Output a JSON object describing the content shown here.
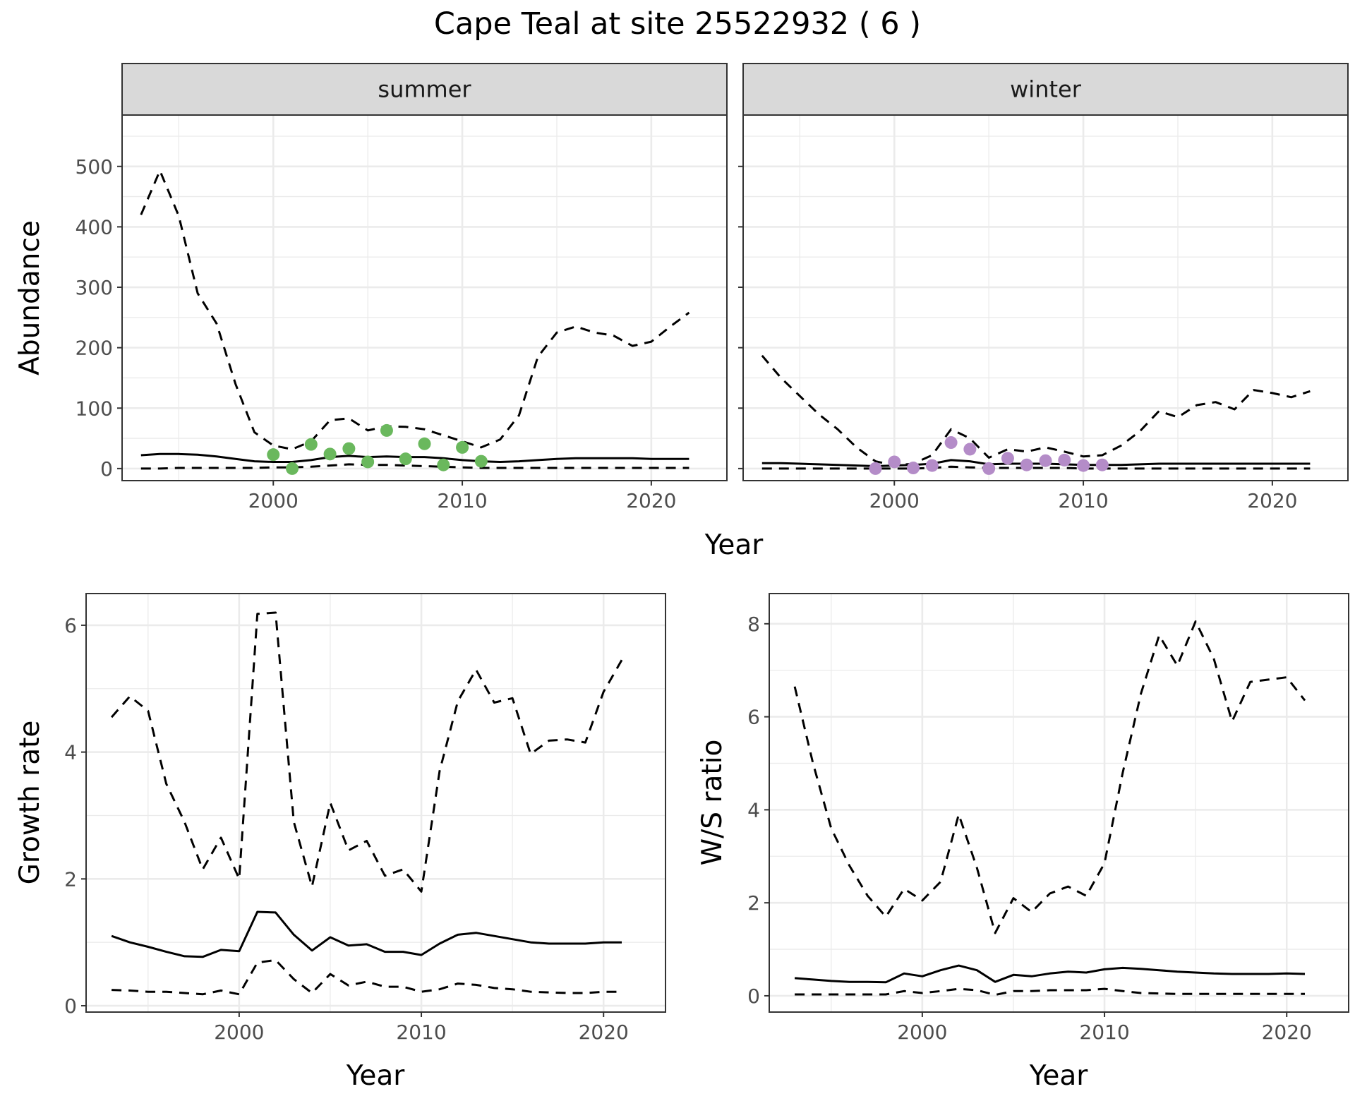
{
  "title": "Cape Teal at site 25522932 ( 6 )",
  "chart_data": [
    {
      "type": "line",
      "panel": "summer",
      "strip_label": "summer",
      "xlabel": "",
      "ylabel": "Abundance",
      "xlim": [
        1992,
        2024
      ],
      "ylim": [
        -20,
        585
      ],
      "x_ticks": [
        2000,
        2010,
        2020
      ],
      "y_ticks": [
        0,
        100,
        200,
        300,
        400,
        500
      ],
      "grid": true,
      "series": [
        {
          "style": "dashed",
          "x": [
            1993,
            1994,
            1995,
            1996,
            1997,
            1998,
            1999,
            2000,
            2001,
            2002,
            2003,
            2004,
            2005,
            2006,
            2007,
            2008,
            2009,
            2010,
            2011,
            2012,
            2013,
            2014,
            2015,
            2016,
            2017,
            2018,
            2019,
            2020,
            2021,
            2022
          ],
          "values": [
            420,
            493,
            418,
            290,
            240,
            140,
            60,
            38,
            32,
            45,
            80,
            83,
            63,
            70,
            69,
            65,
            55,
            45,
            35,
            48,
            88,
            185,
            225,
            235,
            225,
            220,
            203,
            210,
            235,
            258
          ]
        },
        {
          "style": "solid",
          "x": [
            1993,
            1994,
            1995,
            1996,
            1997,
            1998,
            1999,
            2000,
            2001,
            2002,
            2003,
            2004,
            2005,
            2006,
            2007,
            2008,
            2009,
            2010,
            2011,
            2012,
            2013,
            2014,
            2015,
            2016,
            2017,
            2018,
            2019,
            2020,
            2021,
            2022
          ],
          "values": [
            22,
            24,
            24,
            23,
            20,
            16,
            12,
            11,
            11,
            14,
            19,
            21,
            19,
            20,
            19,
            19,
            17,
            14,
            12,
            11,
            12,
            14,
            16,
            17,
            17,
            17,
            17,
            16,
            16,
            16
          ]
        },
        {
          "style": "dashed",
          "x": [
            1993,
            1994,
            1995,
            1996,
            1997,
            1998,
            1999,
            2000,
            2001,
            2002,
            2003,
            2004,
            2005,
            2006,
            2007,
            2008,
            2009,
            2010,
            2011,
            2012,
            2013,
            2014,
            2015,
            2016,
            2017,
            2018,
            2019,
            2020,
            2021,
            2022
          ],
          "values": [
            0,
            0,
            1,
            1,
            1,
            1,
            1,
            2,
            2,
            3,
            5,
            7,
            6,
            6,
            5,
            4,
            3,
            2,
            1,
            1,
            1,
            1,
            1,
            1,
            1,
            1,
            1,
            1,
            1,
            1
          ]
        }
      ],
      "points": {
        "color": "#6ab85d",
        "x": [
          2000,
          2001,
          2002,
          2003,
          2004,
          2005,
          2006,
          2007,
          2008,
          2009,
          2010,
          2011
        ],
        "values": [
          23,
          0,
          40,
          24,
          33,
          11,
          63,
          16,
          41,
          6,
          35,
          12
        ]
      }
    },
    {
      "type": "line",
      "panel": "winter",
      "strip_label": "winter",
      "xlabel": "",
      "ylabel": "",
      "xlim": [
        1992,
        2024
      ],
      "ylim": [
        -20,
        585
      ],
      "x_ticks": [
        2000,
        2010,
        2020
      ],
      "y_ticks": [
        0,
        100,
        200,
        300,
        400,
        500
      ],
      "grid": true,
      "series": [
        {
          "style": "dashed",
          "x": [
            1993,
            1994,
            1995,
            1996,
            1997,
            1998,
            1999,
            2000,
            2001,
            2002,
            2003,
            2004,
            2005,
            2006,
            2007,
            2008,
            2009,
            2010,
            2011,
            2012,
            2013,
            2014,
            2015,
            2016,
            2017,
            2018,
            2019,
            2020,
            2021,
            2022
          ],
          "values": [
            187,
            150,
            120,
            90,
            65,
            35,
            12,
            5,
            8,
            22,
            65,
            50,
            18,
            32,
            28,
            35,
            28,
            20,
            22,
            38,
            62,
            95,
            85,
            105,
            110,
            98,
            130,
            125,
            118,
            128
          ]
        },
        {
          "style": "solid",
          "x": [
            1993,
            1994,
            1995,
            1996,
            1997,
            1998,
            1999,
            2000,
            2001,
            2002,
            2003,
            2004,
            2005,
            2006,
            2007,
            2008,
            2009,
            2010,
            2011,
            2012,
            2013,
            2014,
            2015,
            2016,
            2017,
            2018,
            2019,
            2020,
            2021,
            2022
          ],
          "values": [
            9,
            9,
            8,
            7,
            6,
            5,
            4,
            5,
            6,
            8,
            14,
            12,
            7,
            8,
            8,
            8,
            7,
            6,
            6,
            6,
            7,
            8,
            8,
            8,
            8,
            8,
            8,
            8,
            8,
            8
          ]
        },
        {
          "style": "dashed",
          "x": [
            1993,
            1994,
            1995,
            1996,
            1997,
            1998,
            1999,
            2000,
            2001,
            2002,
            2003,
            2004,
            2005,
            2006,
            2007,
            2008,
            2009,
            2010,
            2011,
            2012,
            2013,
            2014,
            2015,
            2016,
            2017,
            2018,
            2019,
            2020,
            2021,
            2022
          ],
          "values": [
            0,
            0,
            0,
            0,
            0,
            0,
            0,
            0,
            0,
            1,
            3,
            2,
            1,
            1,
            1,
            1,
            1,
            0,
            0,
            0,
            0,
            0,
            0,
            0,
            0,
            0,
            0,
            0,
            0,
            0
          ]
        }
      ],
      "points": {
        "color": "#b48cc8",
        "x": [
          1999,
          2000,
          2001,
          2002,
          2003,
          2004,
          2005,
          2006,
          2007,
          2008,
          2009,
          2010,
          2011
        ],
        "values": [
          0,
          11,
          1,
          5,
          43,
          32,
          0,
          17,
          6,
          13,
          14,
          5,
          6
        ]
      }
    },
    {
      "type": "line",
      "panel": "growth",
      "xlabel": "Year",
      "ylabel": "Growth rate",
      "xlim": [
        1991.6,
        2023.4
      ],
      "ylim": [
        -0.1,
        6.5
      ],
      "x_ticks": [
        2000,
        2010,
        2020
      ],
      "y_ticks": [
        0,
        2,
        4,
        6
      ],
      "grid": true,
      "series": [
        {
          "style": "dashed",
          "x": [
            1993,
            1994,
            1995,
            1996,
            1997,
            1998,
            1999,
            2000,
            2001,
            2002,
            2003,
            2004,
            2005,
            2006,
            2007,
            2008,
            2009,
            2010,
            2011,
            2012,
            2013,
            2014,
            2015,
            2016,
            2017,
            2018,
            2019,
            2020,
            2021
          ],
          "values": [
            4.55,
            4.88,
            4.65,
            3.5,
            2.9,
            2.15,
            2.65,
            2.0,
            6.18,
            6.2,
            2.9,
            1.88,
            3.2,
            2.45,
            2.6,
            2.05,
            2.15,
            1.8,
            3.7,
            4.8,
            5.3,
            4.78,
            4.85,
            3.97,
            4.18,
            4.2,
            4.15,
            4.95,
            5.45
          ]
        },
        {
          "style": "solid",
          "x": [
            1993,
            1994,
            1995,
            1996,
            1997,
            1998,
            1999,
            2000,
            2001,
            2002,
            2003,
            2004,
            2005,
            2006,
            2007,
            2008,
            2009,
            2010,
            2011,
            2012,
            2013,
            2014,
            2015,
            2016,
            2017,
            2018,
            2019,
            2020,
            2021
          ],
          "values": [
            1.1,
            1.0,
            0.93,
            0.85,
            0.78,
            0.77,
            0.88,
            0.86,
            1.48,
            1.47,
            1.12,
            0.87,
            1.08,
            0.95,
            0.97,
            0.85,
            0.85,
            0.8,
            0.98,
            1.12,
            1.15,
            1.1,
            1.05,
            1.0,
            0.98,
            0.98,
            0.98,
            1.0,
            1.0
          ]
        },
        {
          "style": "dashed",
          "x": [
            1993,
            1994,
            1995,
            1996,
            1997,
            1998,
            1999,
            2000,
            2001,
            2002,
            2003,
            2004,
            2005,
            2006,
            2007,
            2008,
            2009,
            2010,
            2011,
            2012,
            2013,
            2014,
            2015,
            2016,
            2017,
            2018,
            2019,
            2020,
            2021
          ],
          "values": [
            0.25,
            0.24,
            0.22,
            0.22,
            0.2,
            0.18,
            0.24,
            0.18,
            0.68,
            0.72,
            0.42,
            0.2,
            0.5,
            0.32,
            0.38,
            0.3,
            0.3,
            0.22,
            0.26,
            0.35,
            0.33,
            0.28,
            0.26,
            0.22,
            0.21,
            0.2,
            0.2,
            0.22,
            0.22
          ]
        }
      ]
    },
    {
      "type": "line",
      "panel": "ws_ratio",
      "xlabel": "Year",
      "ylabel": "W/S ratio",
      "xlim": [
        1991.6,
        2023.4
      ],
      "ylim": [
        -0.35,
        8.65
      ],
      "x_ticks": [
        2000,
        2010,
        2020
      ],
      "y_ticks": [
        0,
        2,
        4,
        6,
        8
      ],
      "grid": true,
      "series": [
        {
          "style": "dashed",
          "x": [
            1993,
            1994,
            1995,
            1996,
            1997,
            1998,
            1999,
            2000,
            2001,
            2002,
            2003,
            2004,
            2005,
            2006,
            2007,
            2008,
            2009,
            2010,
            2011,
            2012,
            2013,
            2014,
            2015,
            2016,
            2017,
            2018,
            2019,
            2020,
            2021
          ],
          "values": [
            6.65,
            5.0,
            3.6,
            2.8,
            2.15,
            1.7,
            2.3,
            2.05,
            2.45,
            3.9,
            2.75,
            1.35,
            2.1,
            1.8,
            2.2,
            2.35,
            2.15,
            2.85,
            4.8,
            6.5,
            7.75,
            7.1,
            8.05,
            7.25,
            5.9,
            6.75,
            6.8,
            6.85,
            6.35
          ]
        },
        {
          "style": "solid",
          "x": [
            1993,
            1994,
            1995,
            1996,
            1997,
            1998,
            1999,
            2000,
            2001,
            2002,
            2003,
            2004,
            2005,
            2006,
            2007,
            2008,
            2009,
            2010,
            2011,
            2012,
            2013,
            2014,
            2015,
            2016,
            2017,
            2018,
            2019,
            2020,
            2021
          ],
          "values": [
            0.38,
            0.35,
            0.32,
            0.3,
            0.3,
            0.29,
            0.48,
            0.42,
            0.55,
            0.65,
            0.55,
            0.3,
            0.45,
            0.42,
            0.48,
            0.52,
            0.5,
            0.57,
            0.6,
            0.58,
            0.55,
            0.52,
            0.5,
            0.48,
            0.47,
            0.47,
            0.47,
            0.48,
            0.47
          ]
        },
        {
          "style": "dashed",
          "x": [
            1993,
            1994,
            1995,
            1996,
            1997,
            1998,
            1999,
            2000,
            2001,
            2002,
            2003,
            2004,
            2005,
            2006,
            2007,
            2008,
            2009,
            2010,
            2011,
            2012,
            2013,
            2014,
            2015,
            2016,
            2017,
            2018,
            2019,
            2020,
            2021
          ],
          "values": [
            0.03,
            0.03,
            0.03,
            0.03,
            0.03,
            0.03,
            0.1,
            0.06,
            0.1,
            0.15,
            0.12,
            0.02,
            0.1,
            0.1,
            0.12,
            0.12,
            0.12,
            0.15,
            0.1,
            0.06,
            0.05,
            0.04,
            0.04,
            0.04,
            0.04,
            0.04,
            0.04,
            0.04,
            0.04
          ]
        }
      ]
    }
  ],
  "shared_xlabel_top": "Year"
}
